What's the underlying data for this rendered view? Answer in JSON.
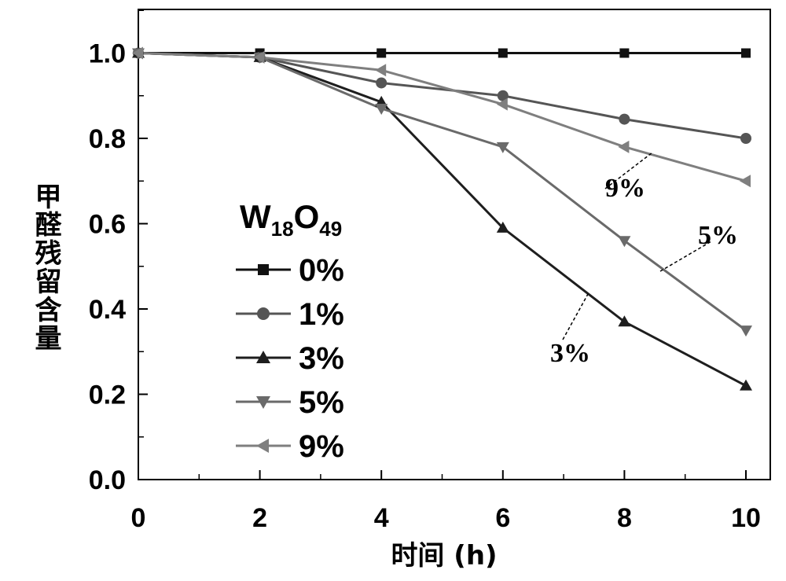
{
  "chart_data": {
    "type": "line",
    "xlabel": "时间 (h)",
    "ylabel": "甲醛残留含量",
    "xlim": [
      0,
      10
    ],
    "ylim": [
      0,
      1.1
    ],
    "x_ticks": [
      "0",
      "2",
      "4",
      "6",
      "8",
      "10"
    ],
    "y_ticks": [
      "0.0",
      "0.2",
      "0.4",
      "0.6",
      "0.8",
      "1.0"
    ],
    "x": [
      0,
      2,
      4,
      6,
      8,
      10
    ],
    "legend": {
      "title_main": "W",
      "title_sub1": "18",
      "title_mid": "O",
      "title_sub2": "49",
      "position": "left"
    },
    "series": [
      {
        "name": "0%",
        "values": [
          1.0,
          1.0,
          1.0,
          1.0,
          1.0,
          1.0
        ],
        "marker": "square",
        "color": "#111111"
      },
      {
        "name": "1%",
        "values": [
          1.0,
          0.99,
          0.93,
          0.9,
          0.845,
          0.8
        ],
        "marker": "circle",
        "color": "#555555"
      },
      {
        "name": "3%",
        "values": [
          1.0,
          0.99,
          0.885,
          0.59,
          0.37,
          0.22
        ],
        "marker": "triangle-up",
        "color": "#1e1e1e"
      },
      {
        "name": "5%",
        "values": [
          1.0,
          0.99,
          0.87,
          0.78,
          0.56,
          0.35
        ],
        "marker": "triangle-down",
        "color": "#6a6a6a"
      },
      {
        "name": "9%",
        "values": [
          1.0,
          0.99,
          0.96,
          0.88,
          0.78,
          0.7
        ],
        "marker": "triangle-left",
        "color": "#7f7f7f"
      }
    ],
    "annotations": [
      {
        "text": "9%",
        "series": "9%"
      },
      {
        "text": "5%",
        "series": "5%"
      },
      {
        "text": "3%",
        "series": "3%"
      }
    ],
    "grid": false
  }
}
